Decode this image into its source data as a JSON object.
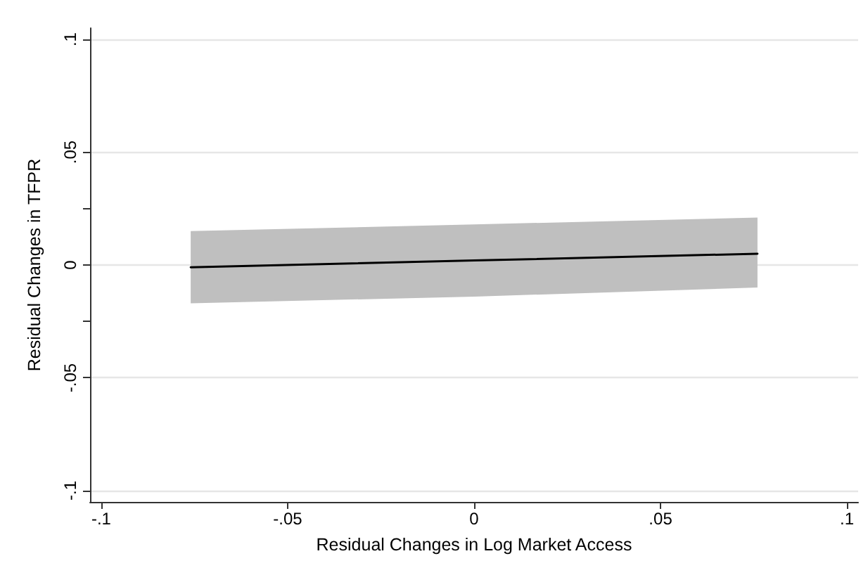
{
  "chart_data": {
    "type": "line",
    "xlabel": "Residual Changes in Log Market Access",
    "ylabel": "Residual Changes in TFPR",
    "x": [
      -0.076,
      0,
      0.076
    ],
    "series": [
      {
        "color": "#000000",
        "values": [
          -0.001,
          0.002,
          0.005
        ],
        "lower": [
          -0.017,
          -0.014,
          -0.01
        ],
        "upper": [
          0.015,
          0.018,
          0.021
        ]
      }
    ],
    "xlim": [
      -0.103,
      0.103
    ],
    "ylim": [
      -0.105,
      0.105
    ],
    "xticks": [
      {
        "value": -0.1,
        "label": "-.1"
      },
      {
        "value": -0.05,
        "label": "-.05"
      },
      0,
      {
        "value": 0.05,
        "label": ".05"
      },
      {
        "value": 0.1,
        "label": ".1"
      }
    ],
    "yticks": [
      {
        "value": -0.1,
        "label": "-.1"
      },
      {
        "value": -0.05,
        "label": "-.05"
      },
      {
        "value": -0.025,
        "label": null
      },
      0,
      {
        "value": 0.025,
        "label": null
      },
      {
        "value": 0.05,
        "label": ".05"
      },
      {
        "value": 0.1,
        "label": ".1"
      }
    ],
    "grid": "y",
    "marker": "none"
  }
}
